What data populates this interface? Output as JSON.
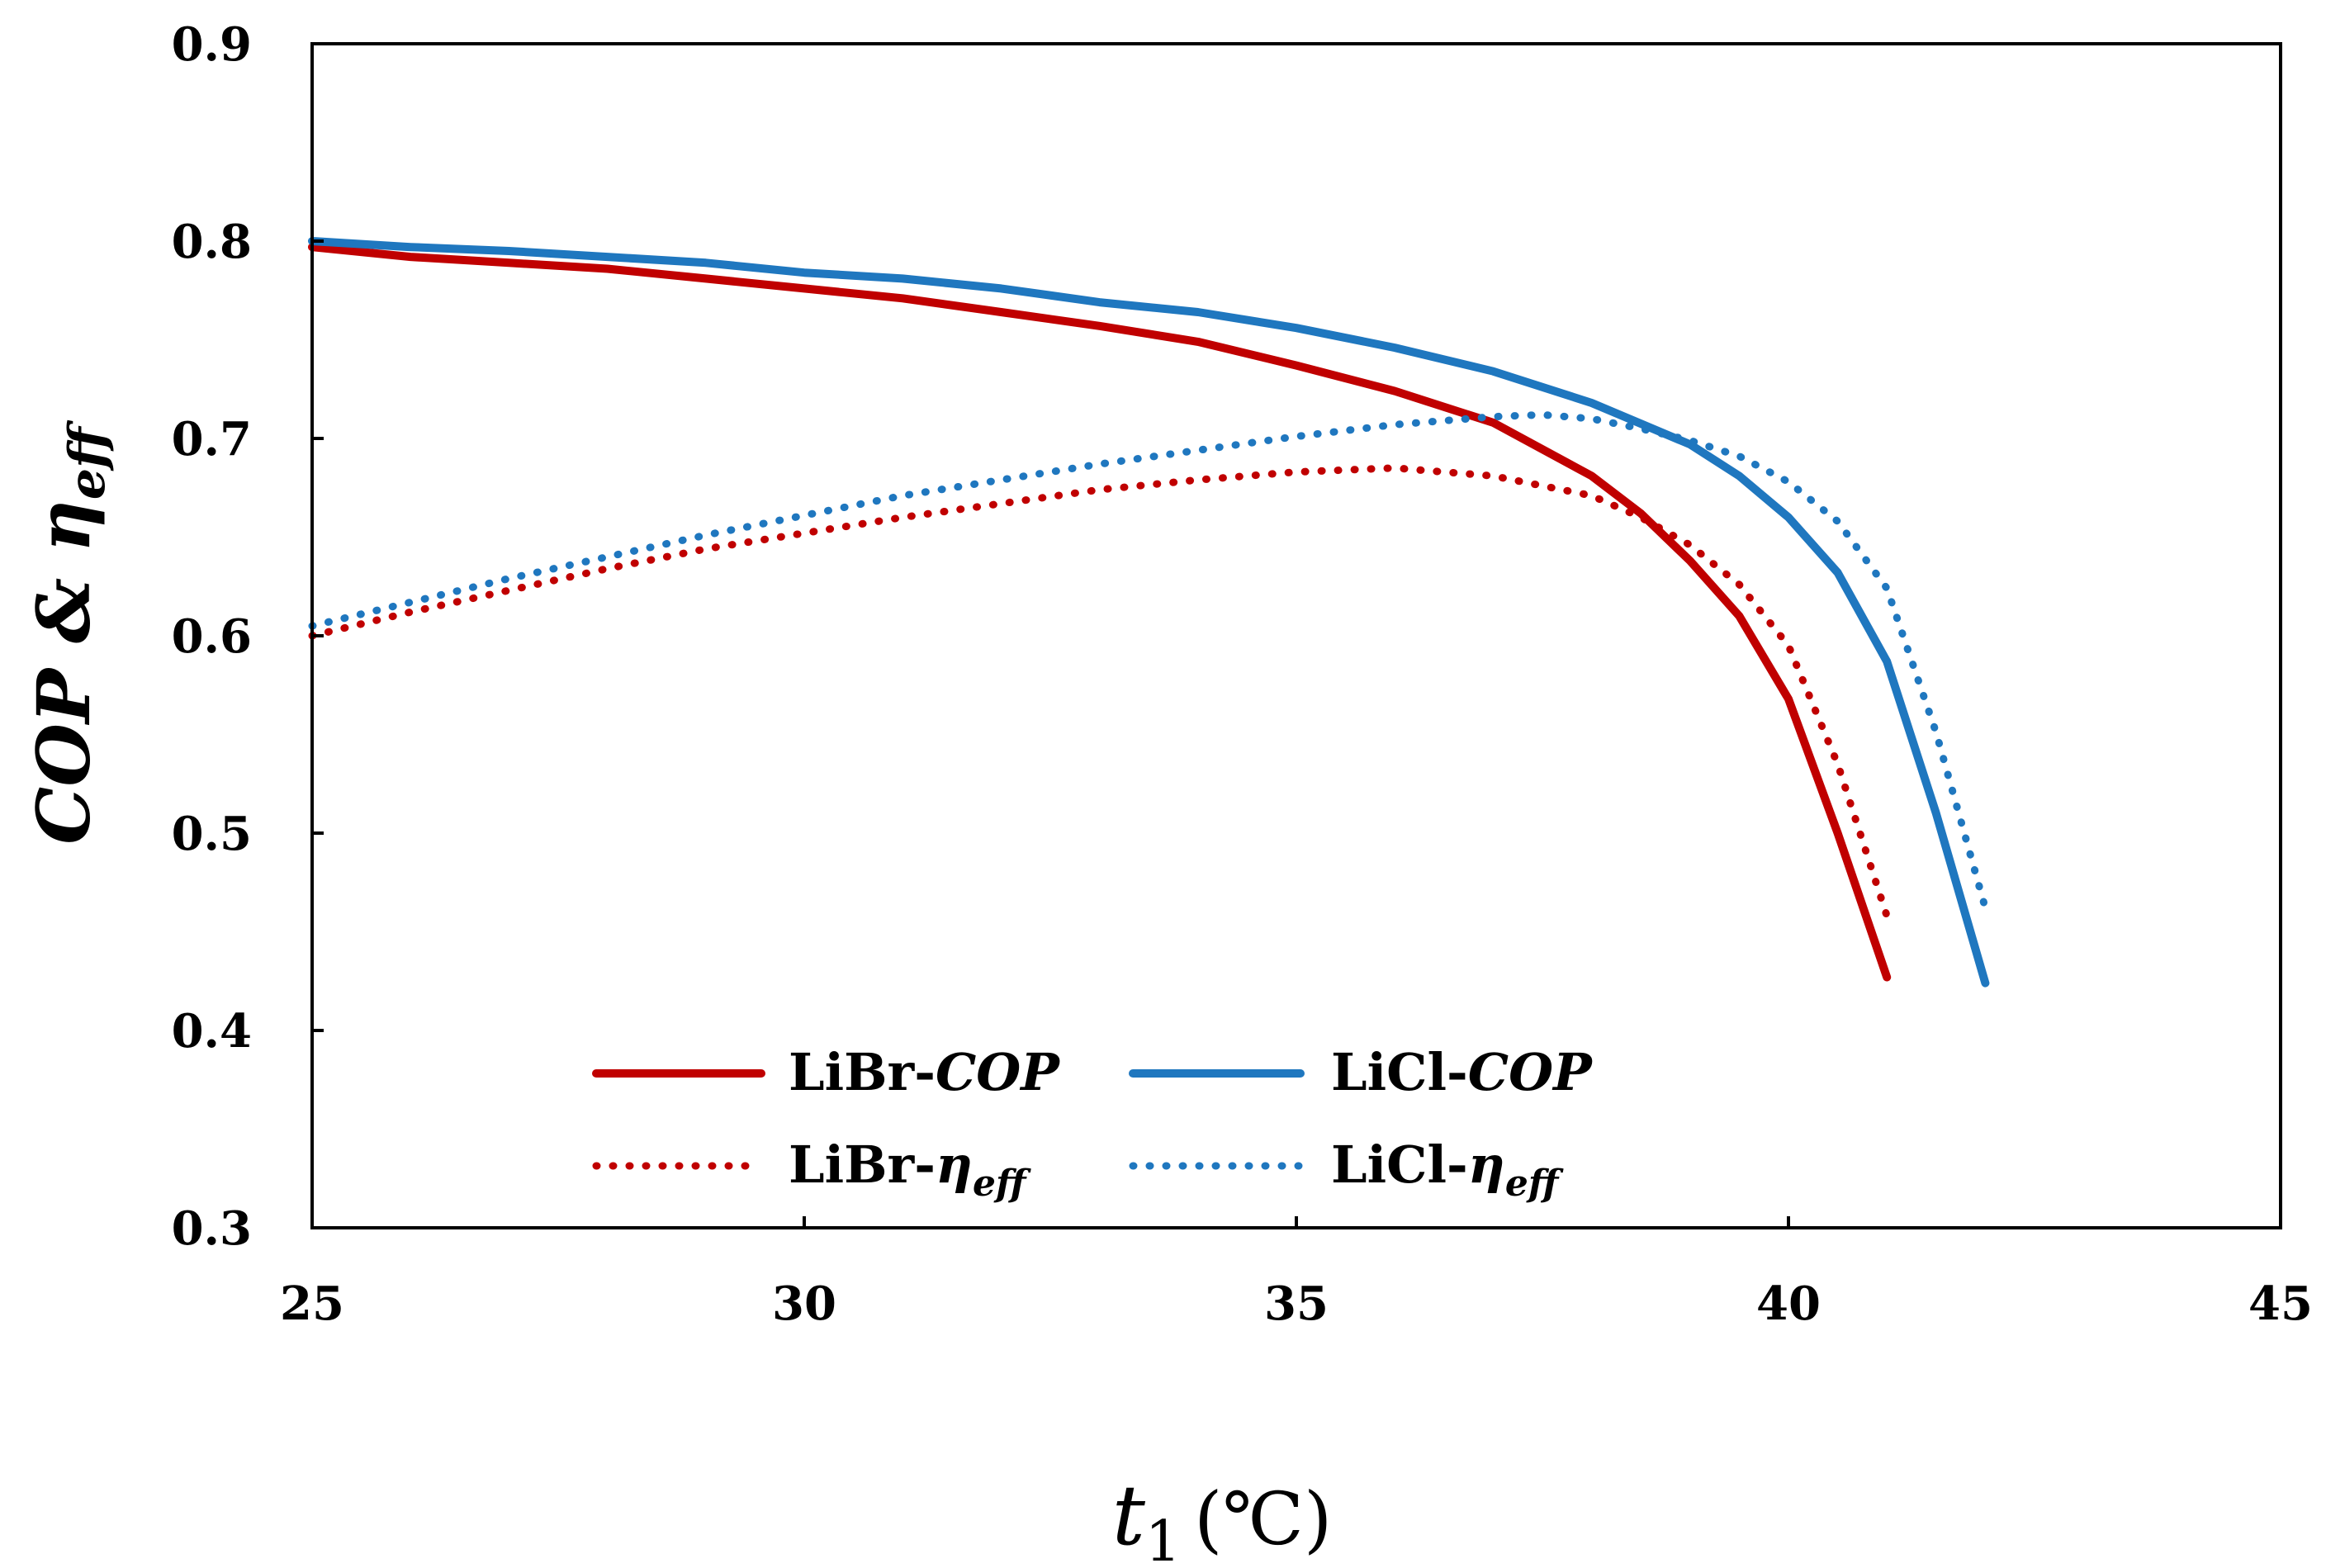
{
  "chart_data": {
    "type": "line",
    "xlabel": {
      "main": "t",
      "sub": "1",
      "unit": "(℃)"
    },
    "ylabel": {
      "main": "COP & η",
      "sub": "eff"
    },
    "xlim": [
      25,
      45
    ],
    "ylim": [
      0.3,
      0.9
    ],
    "xticks": [
      "25",
      "30",
      "35",
      "40",
      "45"
    ],
    "yticks": [
      "0.3",
      "0.4",
      "0.5",
      "0.6",
      "0.7",
      "0.8",
      "0.9"
    ],
    "grid": false,
    "legend_position": "bottom-left",
    "series": [
      {
        "key": "libr_cop",
        "legend": {
          "prefix": "LiBr-",
          "italic": "COP",
          "sub": ""
        },
        "color": "#c00000",
        "dash": "solid",
        "x": [
          25,
          26,
          27,
          28,
          29,
          30,
          31,
          32,
          33,
          34,
          35,
          36,
          37,
          38,
          38.5,
          39,
          39.5,
          40,
          40.5,
          41
        ],
        "y": [
          0.797,
          0.792,
          0.789,
          0.786,
          0.781,
          0.776,
          0.771,
          0.764,
          0.757,
          0.749,
          0.737,
          0.724,
          0.708,
          0.681,
          0.662,
          0.638,
          0.61,
          0.568,
          0.5,
          0.427
        ]
      },
      {
        "key": "licl_cop",
        "legend": {
          "prefix": "LiCl-",
          "italic": "COP",
          "sub": ""
        },
        "color": "#1f77bf",
        "dash": "solid",
        "x": [
          25,
          26,
          27,
          28,
          29,
          30,
          31,
          32,
          33,
          34,
          35,
          36,
          37,
          38,
          39,
          39.5,
          40,
          40.5,
          41,
          41.5,
          42
        ],
        "y": [
          0.8,
          0.797,
          0.795,
          0.792,
          0.789,
          0.784,
          0.781,
          0.776,
          0.769,
          0.764,
          0.756,
          0.746,
          0.734,
          0.718,
          0.697,
          0.681,
          0.66,
          0.632,
          0.587,
          0.51,
          0.424
        ]
      },
      {
        "key": "libr_eta",
        "legend": {
          "prefix": "LiBr-",
          "italic": "η",
          "sub": "eff"
        },
        "color": "#c00000",
        "dash": "dotted",
        "x": [
          25,
          26,
          27,
          28,
          29,
          30,
          31,
          32,
          33,
          34,
          35,
          36,
          37,
          38,
          38.5,
          39,
          39.5,
          40,
          40.5,
          41
        ],
        "y": [
          0.6,
          0.612,
          0.623,
          0.634,
          0.644,
          0.652,
          0.66,
          0.667,
          0.674,
          0.679,
          0.683,
          0.685,
          0.681,
          0.671,
          0.66,
          0.646,
          0.626,
          0.595,
          0.535,
          0.458
        ]
      },
      {
        "key": "licl_eta",
        "legend": {
          "prefix": "LiCl-",
          "italic": "η",
          "sub": "eff"
        },
        "color": "#1f77bf",
        "dash": "dotted",
        "x": [
          25,
          26,
          27,
          28,
          29,
          30,
          31,
          32,
          33,
          34,
          35,
          36,
          37,
          37.5,
          38,
          38.5,
          39,
          39.5,
          40,
          40.5,
          41,
          41.5,
          42
        ],
        "y": [
          0.605,
          0.617,
          0.629,
          0.64,
          0.651,
          0.661,
          0.671,
          0.679,
          0.687,
          0.694,
          0.701,
          0.707,
          0.711,
          0.712,
          0.71,
          0.705,
          0.699,
          0.691,
          0.678,
          0.658,
          0.624,
          0.551,
          0.462
        ]
      }
    ]
  }
}
